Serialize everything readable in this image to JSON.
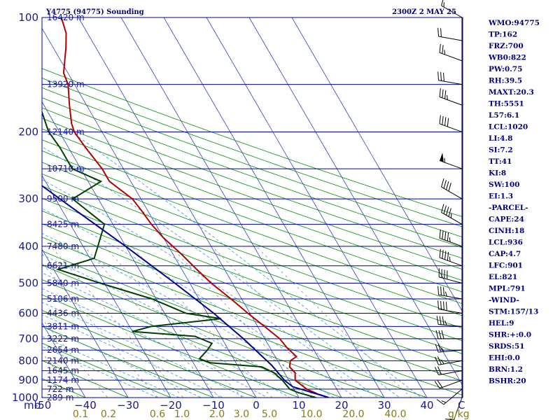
{
  "header": {
    "station": "Y4775 (94775) Sounding",
    "time": "2300Z  2 MAY 25"
  },
  "indices": [
    "WMO:94775",
    "TP:162",
    "FRZ:700",
    "WB0:822",
    "PW:0.75",
    "RH:39.5",
    "MAXT:20.3",
    "TH:5551",
    "L57:6.1",
    "LCL:1020",
    "LI:4.8",
    "SI:7.2",
    "TT:41",
    "KI:8",
    "SW:100",
    "EI:1.3",
    "-PARCEL-",
    "CAPE:24",
    "CINH:18",
    "LCL:936",
    "CAP:4.7",
    "LFC:901",
    "EL:821",
    "MPL:791",
    "-WIND-",
    "STM:157/13",
    "HEL:9",
    "SHR:+:0.0",
    "SRDS:51",
    "EHI:0.0",
    "BRN:1.2",
    "BSHR:20"
  ],
  "colors": {
    "isobar": "#0000a0",
    "isotherm": "#3040c0",
    "dry_adiabat": "#009000",
    "moist_adiabat": "#3399dd",
    "mixing_ratio": "#777777",
    "temperature": "#b00000",
    "dewpoint": "#004000",
    "parcel": "#000090",
    "wind": "#000000",
    "mix_label": "#8a7a10",
    "axis_label": "#1a1a8c"
  },
  "chart_data": {
    "type": "line",
    "title": "Y4775 (94775) Sounding",
    "xlim": [
      -50,
      50
    ],
    "ylim": [
      1000,
      100
    ],
    "y_scale": "log",
    "pressure_ticks": [
      100,
      200,
      300,
      400,
      500,
      600,
      700,
      800,
      900,
      1000
    ],
    "pressure_tick_labels": [
      "100",
      "200",
      "300",
      "400",
      "500",
      "600",
      "700",
      "800",
      "900",
      "1000"
    ],
    "pressure_unit_label": "mb",
    "temperature_ticks": [
      -50,
      -40,
      -30,
      -20,
      -10,
      0,
      10,
      20,
      30,
      40
    ],
    "temperature_tick_labels": [
      "-50",
      "−40",
      "−30",
      "−20",
      "−10",
      "0",
      "10",
      "20",
      "30",
      "40"
    ],
    "temperature_unit_label": "C",
    "mixing_ratio_labels": [
      "0.1",
      "0.2",
      "0.6",
      "1.0",
      "2.0",
      "3.0",
      "5.0",
      "10.0",
      "20.0",
      "40.0"
    ],
    "mixing_ratio_label_x": [
      0.1,
      0.2,
      0.6,
      1.0,
      2.0,
      3.0,
      5.0,
      10.0,
      20.0,
      40.0
    ],
    "mixing_ratio_unit_label": "g/kg",
    "height_labels": [
      {
        "p": 100,
        "text": "16420 m"
      },
      {
        "p": 150,
        "text": "13920 m"
      },
      {
        "p": 200,
        "text": "12140 m"
      },
      {
        "p": 250,
        "text": "10710 m"
      },
      {
        "p": 300,
        "text": "9500 m"
      },
      {
        "p": 350,
        "text": "8425 m"
      },
      {
        "p": 400,
        "text": "7480 m"
      },
      {
        "p": 450,
        "text": "6621 m"
      },
      {
        "p": 500,
        "text": "5840 m"
      },
      {
        "p": 550,
        "text": "5106 m"
      },
      {
        "p": 600,
        "text": "4436 m"
      },
      {
        "p": 650,
        "text": "3811 m"
      },
      {
        "p": 700,
        "text": "3222 m"
      },
      {
        "p": 750,
        "text": "2654 m"
      },
      {
        "p": 800,
        "text": "2140 m"
      },
      {
        "p": 850,
        "text": "1645 m"
      },
      {
        "p": 900,
        "text": "1174 m"
      },
      {
        "p": 950,
        "text": "722 m"
      },
      {
        "p": 1000,
        "text": "289 m"
      }
    ],
    "series": [
      {
        "points": [
          [
            1000,
            17.0
          ],
          [
            980,
            15.0
          ],
          [
            950,
            13.0
          ],
          [
            900,
            11.5
          ],
          [
            860,
            12.5
          ],
          [
            830,
            12.0
          ],
          [
            800,
            13.0
          ],
          [
            780,
            15.0
          ],
          [
            740,
            14.0
          ],
          [
            700,
            13.5
          ],
          [
            660,
            12.0
          ],
          [
            600,
            9.5
          ],
          [
            550,
            7.5
          ],
          [
            500,
            5.0
          ],
          [
            460,
            3.5
          ],
          [
            420,
            2.0
          ],
          [
            380,
            0.0
          ],
          [
            350,
            -1.0
          ],
          [
            320,
            -1.5
          ],
          [
            300,
            -2.0
          ],
          [
            270,
            -5.0
          ],
          [
            250,
            -5.0
          ],
          [
            220,
            -6.0
          ],
          [
            200,
            -6.5
          ],
          [
            190,
            -6.0
          ],
          [
            170,
            -4.0
          ],
          [
            150,
            -1.5
          ],
          [
            140,
            -1.0
          ],
          [
            120,
            3.0
          ],
          [
            110,
            5.0
          ],
          [
            100,
            6.0
          ]
        ]
      },
      {
        "points": [
          [
            1000,
            14.0
          ],
          [
            970,
            10.5
          ],
          [
            950,
            9.0
          ],
          [
            900,
            8.5
          ],
          [
            860,
            7.5
          ],
          [
            830,
            5.5
          ],
          [
            810,
            -6.0
          ],
          [
            790,
            -8.0
          ],
          [
            750,
            -5.0
          ],
          [
            720,
            -3.0
          ],
          [
            690,
            -6.0
          ],
          [
            670,
            -20.0
          ],
          [
            650,
            -15.0
          ],
          [
            620,
            2.5
          ],
          [
            600,
            -5.0
          ],
          [
            550,
            -11.0
          ],
          [
            500,
            -21.0
          ],
          [
            460,
            -29.0
          ],
          [
            430,
            -19.0
          ],
          [
            350,
            -12.0
          ],
          [
            300,
            -16.0
          ],
          [
            270,
            -7.0
          ],
          [
            250,
            -12.0
          ],
          [
            220,
            -12.0
          ],
          [
            200,
            -12.5
          ],
          [
            170,
            -11.0
          ],
          [
            150,
            -10.5
          ],
          [
            130,
            -10.0
          ],
          [
            110,
            -7.0
          ],
          [
            100,
            -3.0
          ]
        ]
      },
      {
        "points": [
          [
            1000,
            17.0
          ],
          [
            936,
            10.0
          ],
          [
            901,
            9.0
          ],
          [
            821,
            8.0
          ],
          [
            700,
            5.0
          ],
          [
            600,
            1.5
          ],
          [
            500,
            -3.5
          ],
          [
            400,
            -10.0
          ],
          [
            300,
            -19.0
          ],
          [
            250,
            -24.5
          ],
          [
            200,
            -30.0
          ],
          [
            150,
            -37.0
          ],
          [
            100,
            -45.0
          ]
        ]
      }
    ],
    "wind_barbs": [
      {
        "p": 1000,
        "dir": 200,
        "spd": 10
      },
      {
        "p": 950,
        "dir": 230,
        "spd": 15
      },
      {
        "p": 900,
        "dir": 250,
        "spd": 20
      },
      {
        "p": 850,
        "dir": 260,
        "spd": 20
      },
      {
        "p": 800,
        "dir": 260,
        "spd": 25
      },
      {
        "p": 750,
        "dir": 265,
        "spd": 25
      },
      {
        "p": 700,
        "dir": 270,
        "spd": 30
      },
      {
        "p": 650,
        "dir": 275,
        "spd": 35
      },
      {
        "p": 600,
        "dir": 280,
        "spd": 40
      },
      {
        "p": 550,
        "dir": 280,
        "spd": 35
      },
      {
        "p": 500,
        "dir": 285,
        "spd": 40
      },
      {
        "p": 450,
        "dir": 290,
        "spd": 45
      },
      {
        "p": 400,
        "dir": 290,
        "spd": 45
      },
      {
        "p": 350,
        "dir": 300,
        "spd": 45
      },
      {
        "p": 300,
        "dir": 300,
        "spd": 40
      },
      {
        "p": 250,
        "dir": 290,
        "spd": 55
      },
      {
        "p": 200,
        "dir": 290,
        "spd": 40
      },
      {
        "p": 170,
        "dir": 290,
        "spd": 35
      },
      {
        "p": 150,
        "dir": 280,
        "spd": 30
      },
      {
        "p": 130,
        "dir": 290,
        "spd": 25
      },
      {
        "p": 115,
        "dir": 280,
        "spd": 20
      },
      {
        "p": 100,
        "dir": 300,
        "spd": 15
      }
    ],
    "grid": true,
    "legend": "none"
  }
}
